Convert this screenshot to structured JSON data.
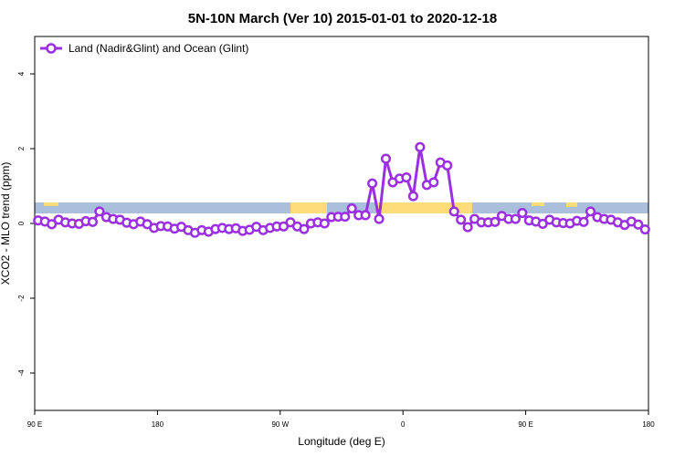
{
  "chart_data": {
    "type": "line",
    "title": "5N-10N March (Ver 10)   2015-01-01 to 2020-12-18",
    "x_label": "Longitude (deg E)",
    "y_label": "XCO2 - MLO trend (ppm)",
    "xlim": [
      90,
      540
    ],
    "ylim": [
      -5,
      5
    ],
    "xticks": [
      {
        "value": 90,
        "label": "90 E"
      },
      180,
      {
        "value": 270,
        "label": "90 W"
      },
      {
        "value": 360,
        "label": "0"
      },
      {
        "value": 450,
        "label": "90 E"
      },
      {
        "value": 540,
        "label": "180"
      }
    ],
    "yticks": [
      -4,
      -2,
      0,
      2,
      4
    ],
    "legend_position": "top-left",
    "x": [
      92.5,
      97.5,
      102.5,
      107.5,
      112.5,
      117.5,
      122.5,
      127.5,
      132.5,
      137.5,
      142.5,
      147.5,
      152.5,
      157.5,
      162.5,
      167.5,
      172.5,
      177.5,
      182.5,
      187.5,
      192.5,
      197.5,
      202.5,
      207.5,
      212.5,
      217.5,
      222.5,
      227.5,
      232.5,
      237.5,
      242.5,
      247.5,
      252.5,
      257.5,
      262.5,
      267.5,
      272.5,
      277.5,
      282.5,
      287.5,
      292.5,
      297.5,
      302.5,
      307.5,
      312.5,
      317.5,
      322.5,
      327.5,
      332.5,
      337.5,
      342.5,
      347.5,
      352.5,
      357.5,
      362.5,
      367.5,
      372.5,
      377.5,
      382.5,
      387.5,
      392.5,
      397.5,
      402.5,
      407.5,
      412.5,
      417.5,
      422.5,
      427.5,
      432.5,
      437.5,
      442.5,
      447.5,
      452.5,
      457.5,
      462.5,
      467.5,
      472.5,
      477.5,
      482.5,
      487.5,
      492.5,
      497.5,
      502.5,
      507.5,
      512.5,
      517.5,
      522.5,
      527.5,
      532.5,
      537.5
    ],
    "series": [
      {
        "name": "Land (Nadir&Glint) and Ocean (Glint)",
        "color": "#9b30e0",
        "values": [
          0.08,
          0.05,
          -0.02,
          0.1,
          0.03,
          0.0,
          -0.01,
          0.06,
          0.04,
          0.32,
          0.17,
          0.12,
          0.1,
          0.02,
          -0.02,
          0.05,
          -0.02,
          -0.12,
          -0.07,
          -0.08,
          -0.14,
          -0.09,
          -0.18,
          -0.25,
          -0.18,
          -0.22,
          -0.15,
          -0.12,
          -0.15,
          -0.13,
          -0.2,
          -0.17,
          -0.09,
          -0.18,
          -0.12,
          -0.08,
          -0.08,
          0.03,
          -0.08,
          -0.15,
          0.0,
          0.03,
          0.0,
          0.17,
          0.18,
          0.18,
          0.4,
          0.22,
          0.22,
          1.07,
          0.12,
          1.73,
          1.1,
          1.2,
          1.23,
          0.73,
          2.04,
          1.03,
          1.1,
          1.63,
          1.55,
          0.32,
          0.1,
          -0.1,
          0.12,
          0.03,
          0.03,
          0.04,
          0.2,
          0.12,
          0.12,
          0.28,
          0.08,
          0.05,
          -0.01,
          0.1,
          0.03,
          0.01,
          0.0,
          0.07,
          0.04,
          0.32,
          0.17,
          0.12,
          0.1,
          0.03,
          -0.04,
          0.05,
          -0.03,
          -0.16
        ]
      }
    ]
  }
}
